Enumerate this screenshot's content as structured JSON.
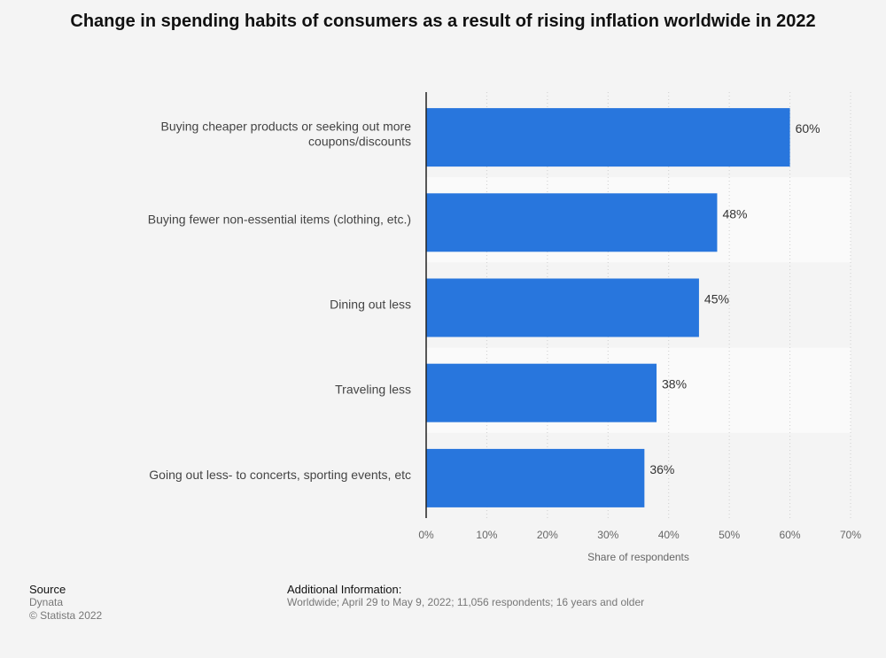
{
  "chart_data": {
    "type": "bar",
    "orientation": "horizontal",
    "title": "Change in spending habits of consumers as a result of rising inflation worldwide in 2022",
    "categories": [
      [
        "Buying cheaper products or seeking out more",
        "coupons/discounts"
      ],
      [
        "Buying fewer non-essential items (clothing, etc.)"
      ],
      [
        "Dining out less"
      ],
      [
        "Traveling less"
      ],
      [
        "Going out less- to concerts, sporting events, etc"
      ]
    ],
    "values": [
      60,
      48,
      45,
      38,
      36
    ],
    "value_labels": [
      "60%",
      "48%",
      "45%",
      "38%",
      "36%"
    ],
    "xlabel": "Share of respondents",
    "xlim": [
      0,
      70
    ],
    "x_ticks": [
      0,
      10,
      20,
      30,
      40,
      50,
      60,
      70
    ],
    "x_tick_labels": [
      "0%",
      "10%",
      "20%",
      "30%",
      "40%",
      "50%",
      "60%",
      "70%"
    ],
    "bar_color": "#2876dd",
    "grid": true
  },
  "footer": {
    "source_heading": "Source",
    "source_lines": [
      "Dynata",
      "© Statista 2022"
    ],
    "info_heading": "Additional Information:",
    "info_text": "Worldwide; April 29 to May 9, 2022; 11,056 respondents; 16 years and older"
  }
}
